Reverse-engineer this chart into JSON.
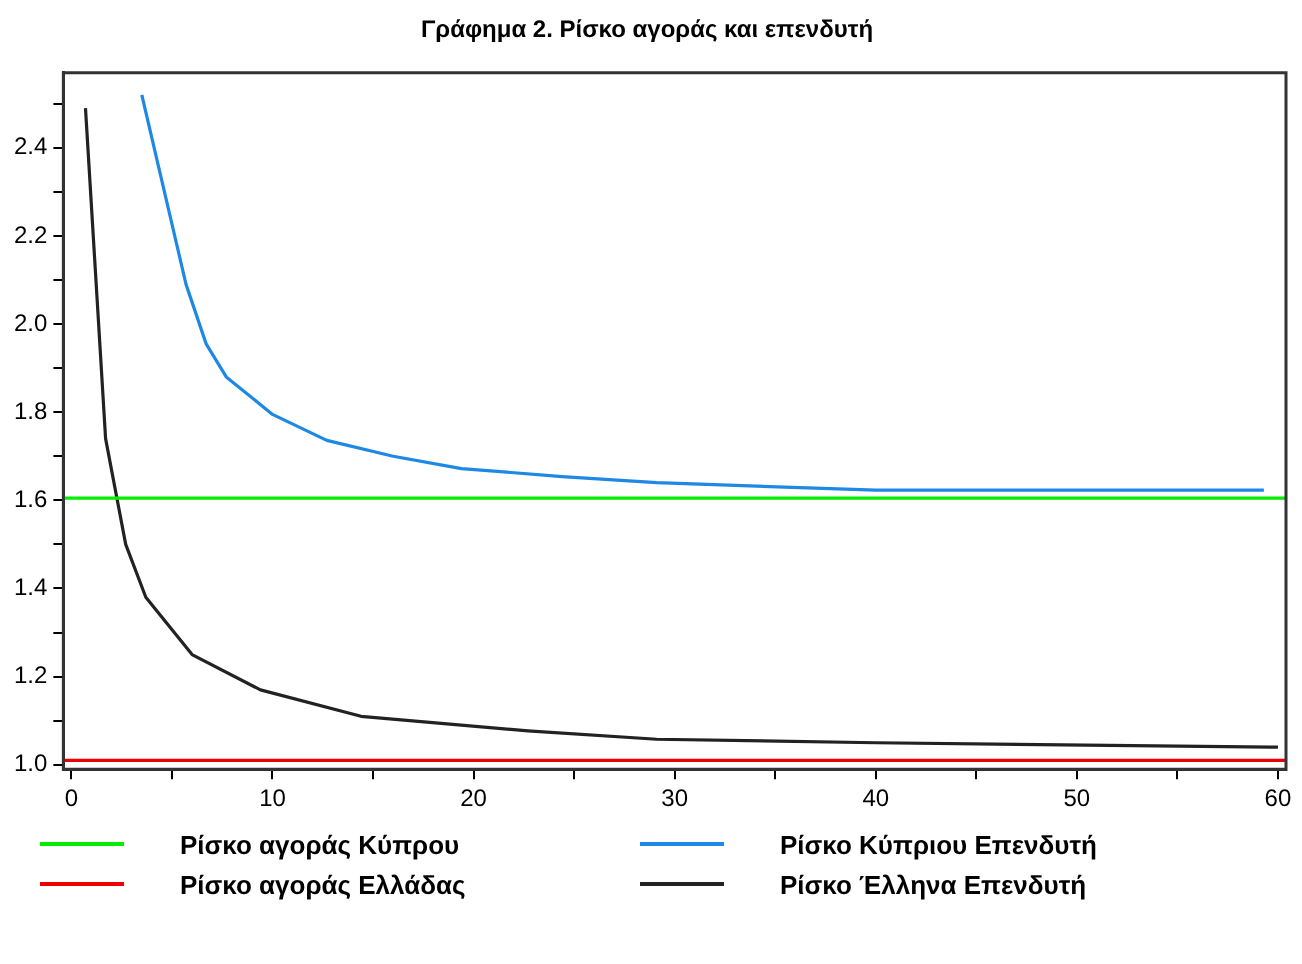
{
  "chart_data": {
    "type": "line",
    "title": "Γράφημα 2. Ρίσκο αγοράς και επενδυτή",
    "xlim": [
      -0.4,
      60.4
    ],
    "ylim": [
      0.99,
      2.57
    ],
    "xticks": [
      0,
      {
        "value": 5,
        "label": null
      },
      10,
      {
        "value": 15,
        "label": null
      },
      20,
      {
        "value": 25,
        "label": null
      },
      30,
      {
        "value": 35,
        "label": null
      },
      40,
      {
        "value": 45,
        "label": null
      },
      50,
      {
        "value": 55,
        "label": null
      },
      60
    ],
    "yticks": [
      {
        "value": 1.0,
        "label": "1.0"
      },
      {
        "value": 1.1,
        "label": null
      },
      {
        "value": 1.2,
        "label": "1.2"
      },
      {
        "value": 1.3,
        "label": null
      },
      {
        "value": 1.4,
        "label": "1.4"
      },
      {
        "value": 1.5,
        "label": null
      },
      {
        "value": 1.6,
        "label": "1.6"
      },
      {
        "value": 1.7,
        "label": null
      },
      {
        "value": 1.8,
        "label": "1.8"
      },
      {
        "value": 1.9,
        "label": null
      },
      {
        "value": 2.0,
        "label": "2.0"
      },
      {
        "value": 2.1,
        "label": null
      },
      {
        "value": 2.2,
        "label": "2.2"
      },
      {
        "value": 2.3,
        "label": null
      },
      {
        "value": 2.4,
        "label": "2.4"
      },
      {
        "value": 2.5,
        "label": null
      }
    ],
    "grid": false,
    "legend": "bottom",
    "marker": "none",
    "line_style": "solid",
    "series": [
      {
        "name": "Ρίσκο αγοράς  Κύπρου",
        "color": "#00ee00",
        "x": [
          -0.4,
          60.4
        ],
        "values": [
          1.605,
          1.605
        ]
      },
      {
        "name": "Ρίσκο αγοράς Ελλάδας",
        "color": "#ee0000",
        "x": [
          -0.4,
          60.4
        ],
        "values": [
          1.01,
          1.01
        ]
      },
      {
        "name": "Ρίσκο Κύπριου Επενδυτή",
        "color": "#1e88e5",
        "x": [
          3.5,
          5.7,
          6.7,
          7.7,
          10,
          12.7,
          16,
          19.4,
          24.4,
          29.1,
          40,
          59.3
        ],
        "values": [
          2.52,
          2.09,
          1.955,
          1.88,
          1.795,
          1.736,
          1.7,
          1.672,
          1.654,
          1.64,
          1.623,
          1.623
        ]
      },
      {
        "name": "Ρίσκο Έλληνα Επενδυτή",
        "color": "#222222",
        "x": [
          0.7,
          1.7,
          2.7,
          3.7,
          6,
          9.4,
          14.4,
          22.7,
          29.1,
          40,
          60
        ],
        "values": [
          2.49,
          1.74,
          1.5,
          1.38,
          1.25,
          1.17,
          1.11,
          1.077,
          1.058,
          1.05,
          1.04
        ]
      }
    ]
  }
}
